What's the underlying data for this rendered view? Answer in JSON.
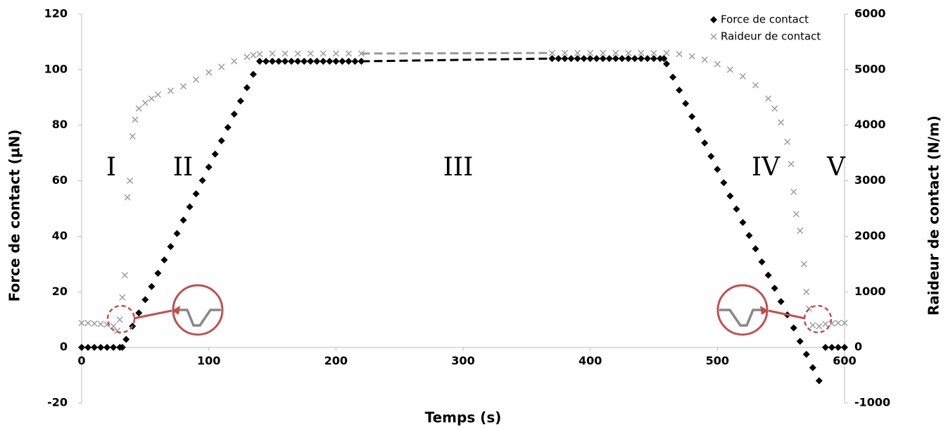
{
  "chart_data": {
    "type": "scatter",
    "x_label": "Temps (s)",
    "y_label": "Force de contact (µN)",
    "y2_label": "Raideur de contact (N/m)",
    "xlim": [
      0,
      600
    ],
    "xticks": [
      0,
      100,
      200,
      300,
      400,
      500,
      600
    ],
    "ylim": [
      -20,
      120
    ],
    "yticks": [
      -20,
      0,
      20,
      40,
      60,
      80,
      100,
      120
    ],
    "y2lim": [
      -1000,
      6000
    ],
    "y2ticks": [
      -1000,
      0,
      1000,
      2000,
      3000,
      4000,
      5000,
      6000
    ],
    "legend": "top-right",
    "gap_style": "dashed",
    "annotations": [
      "I",
      "II",
      "III",
      "IV",
      "V"
    ],
    "series": [
      {
        "name": "Force de contact",
        "color": "#000000",
        "marker": "diamond",
        "x": [
          0,
          5,
          10,
          15,
          20,
          25,
          30,
          32,
          35,
          40,
          45,
          50,
          55,
          60,
          65,
          70,
          75,
          80,
          85,
          90,
          95,
          100,
          105,
          110,
          115,
          120,
          125,
          130,
          135,
          140,
          145,
          150,
          155,
          160,
          165,
          170,
          175,
          180,
          185,
          190,
          195,
          200,
          205,
          210,
          215,
          220,
          225,
          370,
          375,
          380,
          385,
          390,
          395,
          400,
          405,
          410,
          415,
          420,
          425,
          430,
          435,
          440,
          445,
          450,
          455,
          458,
          460,
          465,
          470,
          475,
          480,
          485,
          490,
          495,
          500,
          505,
          510,
          515,
          520,
          525,
          530,
          535,
          540,
          545,
          550,
          555,
          560,
          565,
          570,
          575,
          580,
          585,
          590,
          595,
          600
        ],
        "values": [
          0,
          0,
          0,
          0,
          0,
          0,
          0,
          0,
          2.9,
          7.6,
          12.4,
          17.2,
          21.9,
          26.7,
          31.5,
          36.3,
          41.0,
          45.8,
          50.6,
          55.3,
          60.1,
          64.9,
          69.6,
          74.4,
          79.2,
          84.0,
          88.7,
          93.5,
          98.3,
          103,
          103,
          103,
          103,
          103,
          103,
          103,
          103,
          103,
          103,
          103,
          103,
          103,
          103,
          103,
          103,
          103,
          null,
          104,
          104,
          104,
          104,
          104,
          104,
          104,
          104,
          104,
          104,
          104,
          104,
          104,
          104,
          104,
          104,
          104,
          104,
          104,
          102.1,
          97.3,
          92.6,
          87.8,
          83.1,
          78.3,
          73.6,
          68.8,
          64.1,
          59.3,
          54.5,
          49.8,
          45.0,
          40.3,
          35.5,
          30.8,
          26.0,
          21.3,
          16.5,
          11.7,
          7.0,
          2.2,
          -2.5,
          -7.3,
          -12,
          0,
          0,
          0,
          0
        ]
      },
      {
        "name": "Raideur de contact",
        "color": "#999999",
        "marker": "cross",
        "axis": "y2",
        "x": [
          0,
          5,
          10,
          15,
          20,
          25,
          28,
          30,
          32,
          34,
          36,
          38,
          40,
          42,
          45,
          50,
          55,
          60,
          70,
          80,
          90,
          100,
          110,
          120,
          130,
          135,
          140,
          150,
          160,
          170,
          180,
          190,
          200,
          210,
          220,
          225,
          370,
          380,
          390,
          400,
          410,
          420,
          430,
          440,
          450,
          460,
          470,
          480,
          490,
          500,
          510,
          520,
          530,
          540,
          545,
          550,
          555,
          558,
          560,
          562,
          565,
          568,
          570,
          572,
          575,
          580,
          585,
          590,
          595,
          600
        ],
        "values": [
          440,
          440,
          430,
          420,
          410,
          380,
          300,
          500,
          900,
          1300,
          2700,
          3000,
          3800,
          4100,
          4300,
          4400,
          4480,
          4550,
          4620,
          4700,
          4820,
          4950,
          5050,
          5150,
          5230,
          5260,
          5280,
          5290,
          5290,
          5290,
          5290,
          5290,
          5290,
          5290,
          5290,
          null,
          5300,
          5300,
          5300,
          5300,
          5300,
          5300,
          5300,
          5300,
          5300,
          5300,
          5280,
          5240,
          5180,
          5100,
          5000,
          4880,
          4720,
          4480,
          4300,
          4050,
          3700,
          3300,
          2800,
          2400,
          2100,
          1500,
          1000,
          700,
          400,
          380,
          420,
          430,
          440,
          440
        ]
      }
    ]
  }
}
